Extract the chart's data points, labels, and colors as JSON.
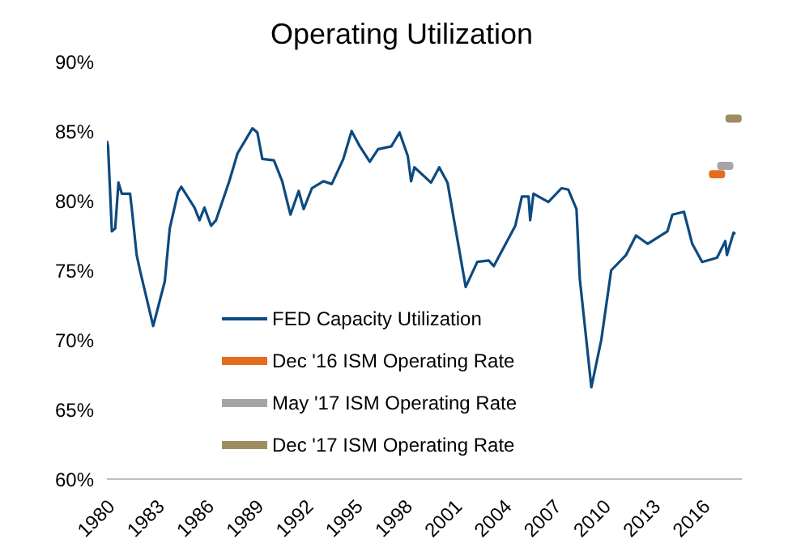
{
  "chart_data": {
    "type": "line",
    "title": "Operating Utilization",
    "xlim": [
      1980,
      2018.4
    ],
    "xticks": [
      1980,
      1983,
      1986,
      1989,
      1992,
      1995,
      1998,
      2001,
      2004,
      2007,
      2010,
      2013,
      2016
    ],
    "ylim": [
      60,
      90
    ],
    "yticks": [
      {
        "value": 60,
        "label": "60%"
      },
      {
        "value": 65,
        "label": "65%"
      },
      {
        "value": 70,
        "label": "70%"
      },
      {
        "value": 75,
        "label": "75%"
      },
      {
        "value": 80,
        "label": "80%"
      },
      {
        "value": 85,
        "label": "85%"
      },
      {
        "value": 90,
        "label": "90%"
      }
    ],
    "grid": false,
    "legend": "bottom",
    "marker": "none",
    "series": [
      {
        "name": "FED Capacity Utilization",
        "color": "#0d4a80",
        "x": [
          1980.0,
          1980.07,
          1980.3,
          1980.5,
          1980.7,
          1980.9,
          1981.4,
          1981.5,
          1981.8,
          1982.0,
          1982.8,
          1983.5,
          1983.8,
          1984.3,
          1984.5,
          1985.3,
          1985.6,
          1985.9,
          1986.3,
          1986.6,
          1987.4,
          1987.9,
          1988.8,
          1989.1,
          1989.4,
          1990.1,
          1990.6,
          1991.1,
          1991.6,
          1991.9,
          1992.4,
          1993.1,
          1993.6,
          1994.3,
          1994.8,
          1995.3,
          1995.9,
          1996.4,
          1997.2,
          1997.7,
          1998.2,
          1998.4,
          1998.6,
          1999.6,
          2000.1,
          2000.6,
          2001.7,
          2002.4,
          2003.1,
          2003.4,
          2004.7,
          2005.1,
          2005.5,
          2005.6,
          2005.8,
          2006.7,
          2007.5,
          2007.9,
          2008.4,
          2008.6,
          2009.3,
          2009.9,
          2010.5,
          2011.4,
          2012.0,
          2012.7,
          2013.9,
          2014.2,
          2014.9,
          2015.4,
          2016.0,
          2016.9,
          2017.4,
          2017.5,
          2017.9,
          2018.0
        ],
        "values": [
          84.3,
          83.9,
          77.8,
          78.0,
          81.3,
          80.5,
          80.5,
          79.5,
          76.1,
          75.0,
          71.0,
          74.2,
          78.0,
          80.6,
          81.0,
          79.5,
          78.6,
          79.5,
          78.2,
          78.6,
          81.4,
          83.4,
          85.2,
          84.9,
          83.0,
          82.9,
          81.4,
          79.0,
          80.7,
          79.4,
          80.9,
          81.4,
          81.2,
          83.0,
          85.0,
          83.9,
          82.8,
          83.7,
          83.9,
          84.9,
          83.2,
          81.4,
          82.4,
          81.3,
          82.4,
          81.3,
          73.8,
          75.6,
          75.7,
          75.3,
          78.2,
          80.3,
          80.3,
          78.6,
          80.5,
          79.9,
          80.9,
          80.8,
          79.4,
          74.4,
          66.6,
          70.0,
          75.0,
          76.1,
          77.5,
          76.9,
          77.8,
          79.0,
          79.2,
          76.9,
          75.6,
          75.9,
          77.1,
          76.1,
          77.7,
          77.6
        ]
      },
      {
        "name": "Dec '16 ISM Operating Rate",
        "type": "scatter",
        "marker": "square",
        "color": "#e46c1e",
        "x": [
          2016.9
        ],
        "values": [
          81.9
        ]
      },
      {
        "name": "May '17 ISM Operating Rate",
        "type": "scatter",
        "marker": "square",
        "color": "#a5a5a5",
        "x": [
          2017.4
        ],
        "values": [
          82.5
        ]
      },
      {
        "name": "Dec '17 ISM Operating Rate",
        "type": "scatter",
        "marker": "square",
        "color": "#a08c5f",
        "x": [
          2017.9
        ],
        "values": [
          85.9
        ]
      }
    ]
  }
}
